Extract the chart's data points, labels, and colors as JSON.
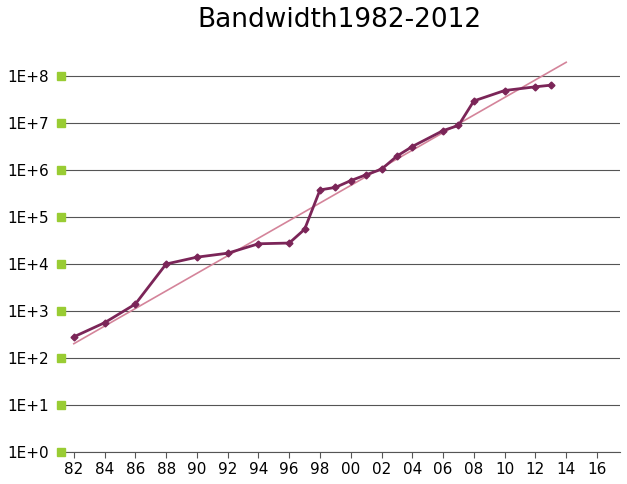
{
  "title": "Bandwidth1982-2012",
  "bandwidth_data": [
    [
      82,
      280
    ],
    [
      84,
      560
    ],
    [
      86,
      1400
    ],
    [
      88,
      10000
    ],
    [
      90,
      14000
    ],
    [
      92,
      17000
    ],
    [
      94,
      27000
    ],
    [
      96,
      28000
    ],
    [
      97,
      55000
    ],
    [
      98,
      380000
    ],
    [
      99,
      430000
    ],
    [
      100,
      600000
    ],
    [
      101,
      800000
    ],
    [
      102,
      1050000
    ],
    [
      103,
      2000000
    ],
    [
      104,
      3200000
    ],
    [
      106,
      7000000
    ],
    [
      107,
      9000000
    ],
    [
      108,
      30000000
    ],
    [
      110,
      50000000
    ],
    [
      112,
      60000000
    ],
    [
      113,
      65000000
    ]
  ],
  "trend_x": [
    82,
    114
  ],
  "trend_y": [
    200,
    200000000
  ],
  "line_color": "#7B2558",
  "trend_color": "#D4849A",
  "marker_color": "#7B2558",
  "ytick_marker_color": "#99CC33",
  "background_color": "#ffffff",
  "grid_color": "#555555",
  "ytick_labels": [
    "1E+0",
    "1E+1",
    "1E+2",
    "1E+3",
    "1E+4",
    "1E+5",
    "1E+6",
    "1E+7",
    "1E+8"
  ],
  "ytick_values": [
    1,
    10,
    100,
    1000,
    10000,
    100000,
    1000000,
    10000000,
    100000000
  ],
  "xtick_positions": [
    82,
    84,
    86,
    88,
    90,
    92,
    94,
    96,
    98,
    100,
    102,
    104,
    106,
    108,
    110,
    112,
    114,
    116
  ],
  "xtick_labels": [
    "82",
    "84",
    "86",
    "88",
    "90",
    "92",
    "94",
    "96",
    "98",
    "00",
    "02",
    "04",
    "06",
    "08",
    "10",
    "12",
    "14",
    "16"
  ],
  "xlim_min": 81.0,
  "xlim_max": 117.5,
  "ylim_min": 1,
  "ylim_max": 500000000,
  "title_fontsize": 19,
  "tick_fontsize": 11,
  "fig_width": 6.27,
  "fig_height": 4.84,
  "dpi": 100
}
